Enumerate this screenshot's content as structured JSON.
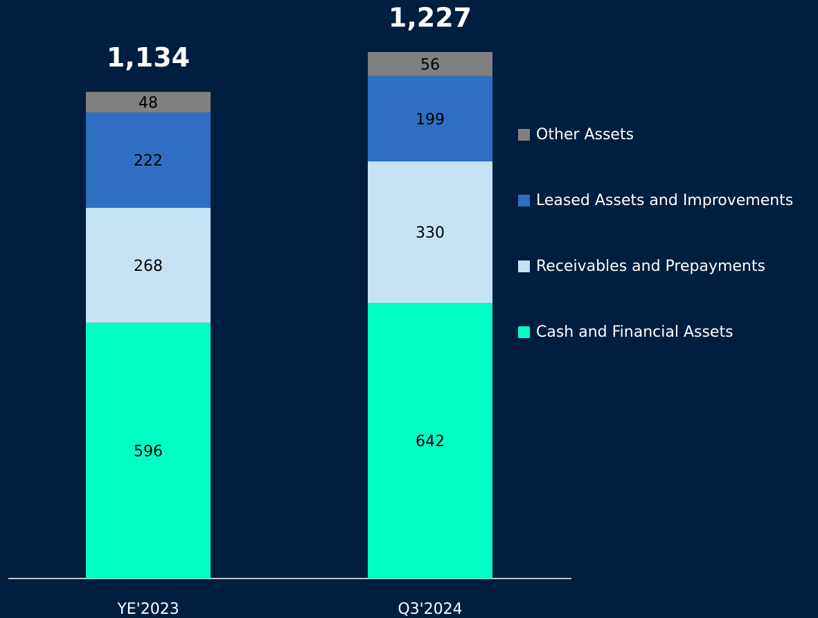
{
  "chart_data": {
    "type": "stacked_bar",
    "categories": [
      "YE'2023",
      "Q3'2024"
    ],
    "series": [
      {
        "name": "Cash and Financial Assets",
        "color": "#00ffc6",
        "values": [
          596,
          642
        ]
      },
      {
        "name": "Receivables and Prepayments",
        "color": "#c6e3f6",
        "values": [
          268,
          330
        ]
      },
      {
        "name": "Leased Assets and Improvements",
        "color": "#2e6fc4",
        "values": [
          222,
          199
        ]
      },
      {
        "name": "Other Assets",
        "color": "#808080",
        "values": [
          48,
          56
        ]
      }
    ],
    "totals": [
      1134,
      1227
    ],
    "total_labels": [
      "1,134",
      "1,227"
    ],
    "legend": "right"
  }
}
